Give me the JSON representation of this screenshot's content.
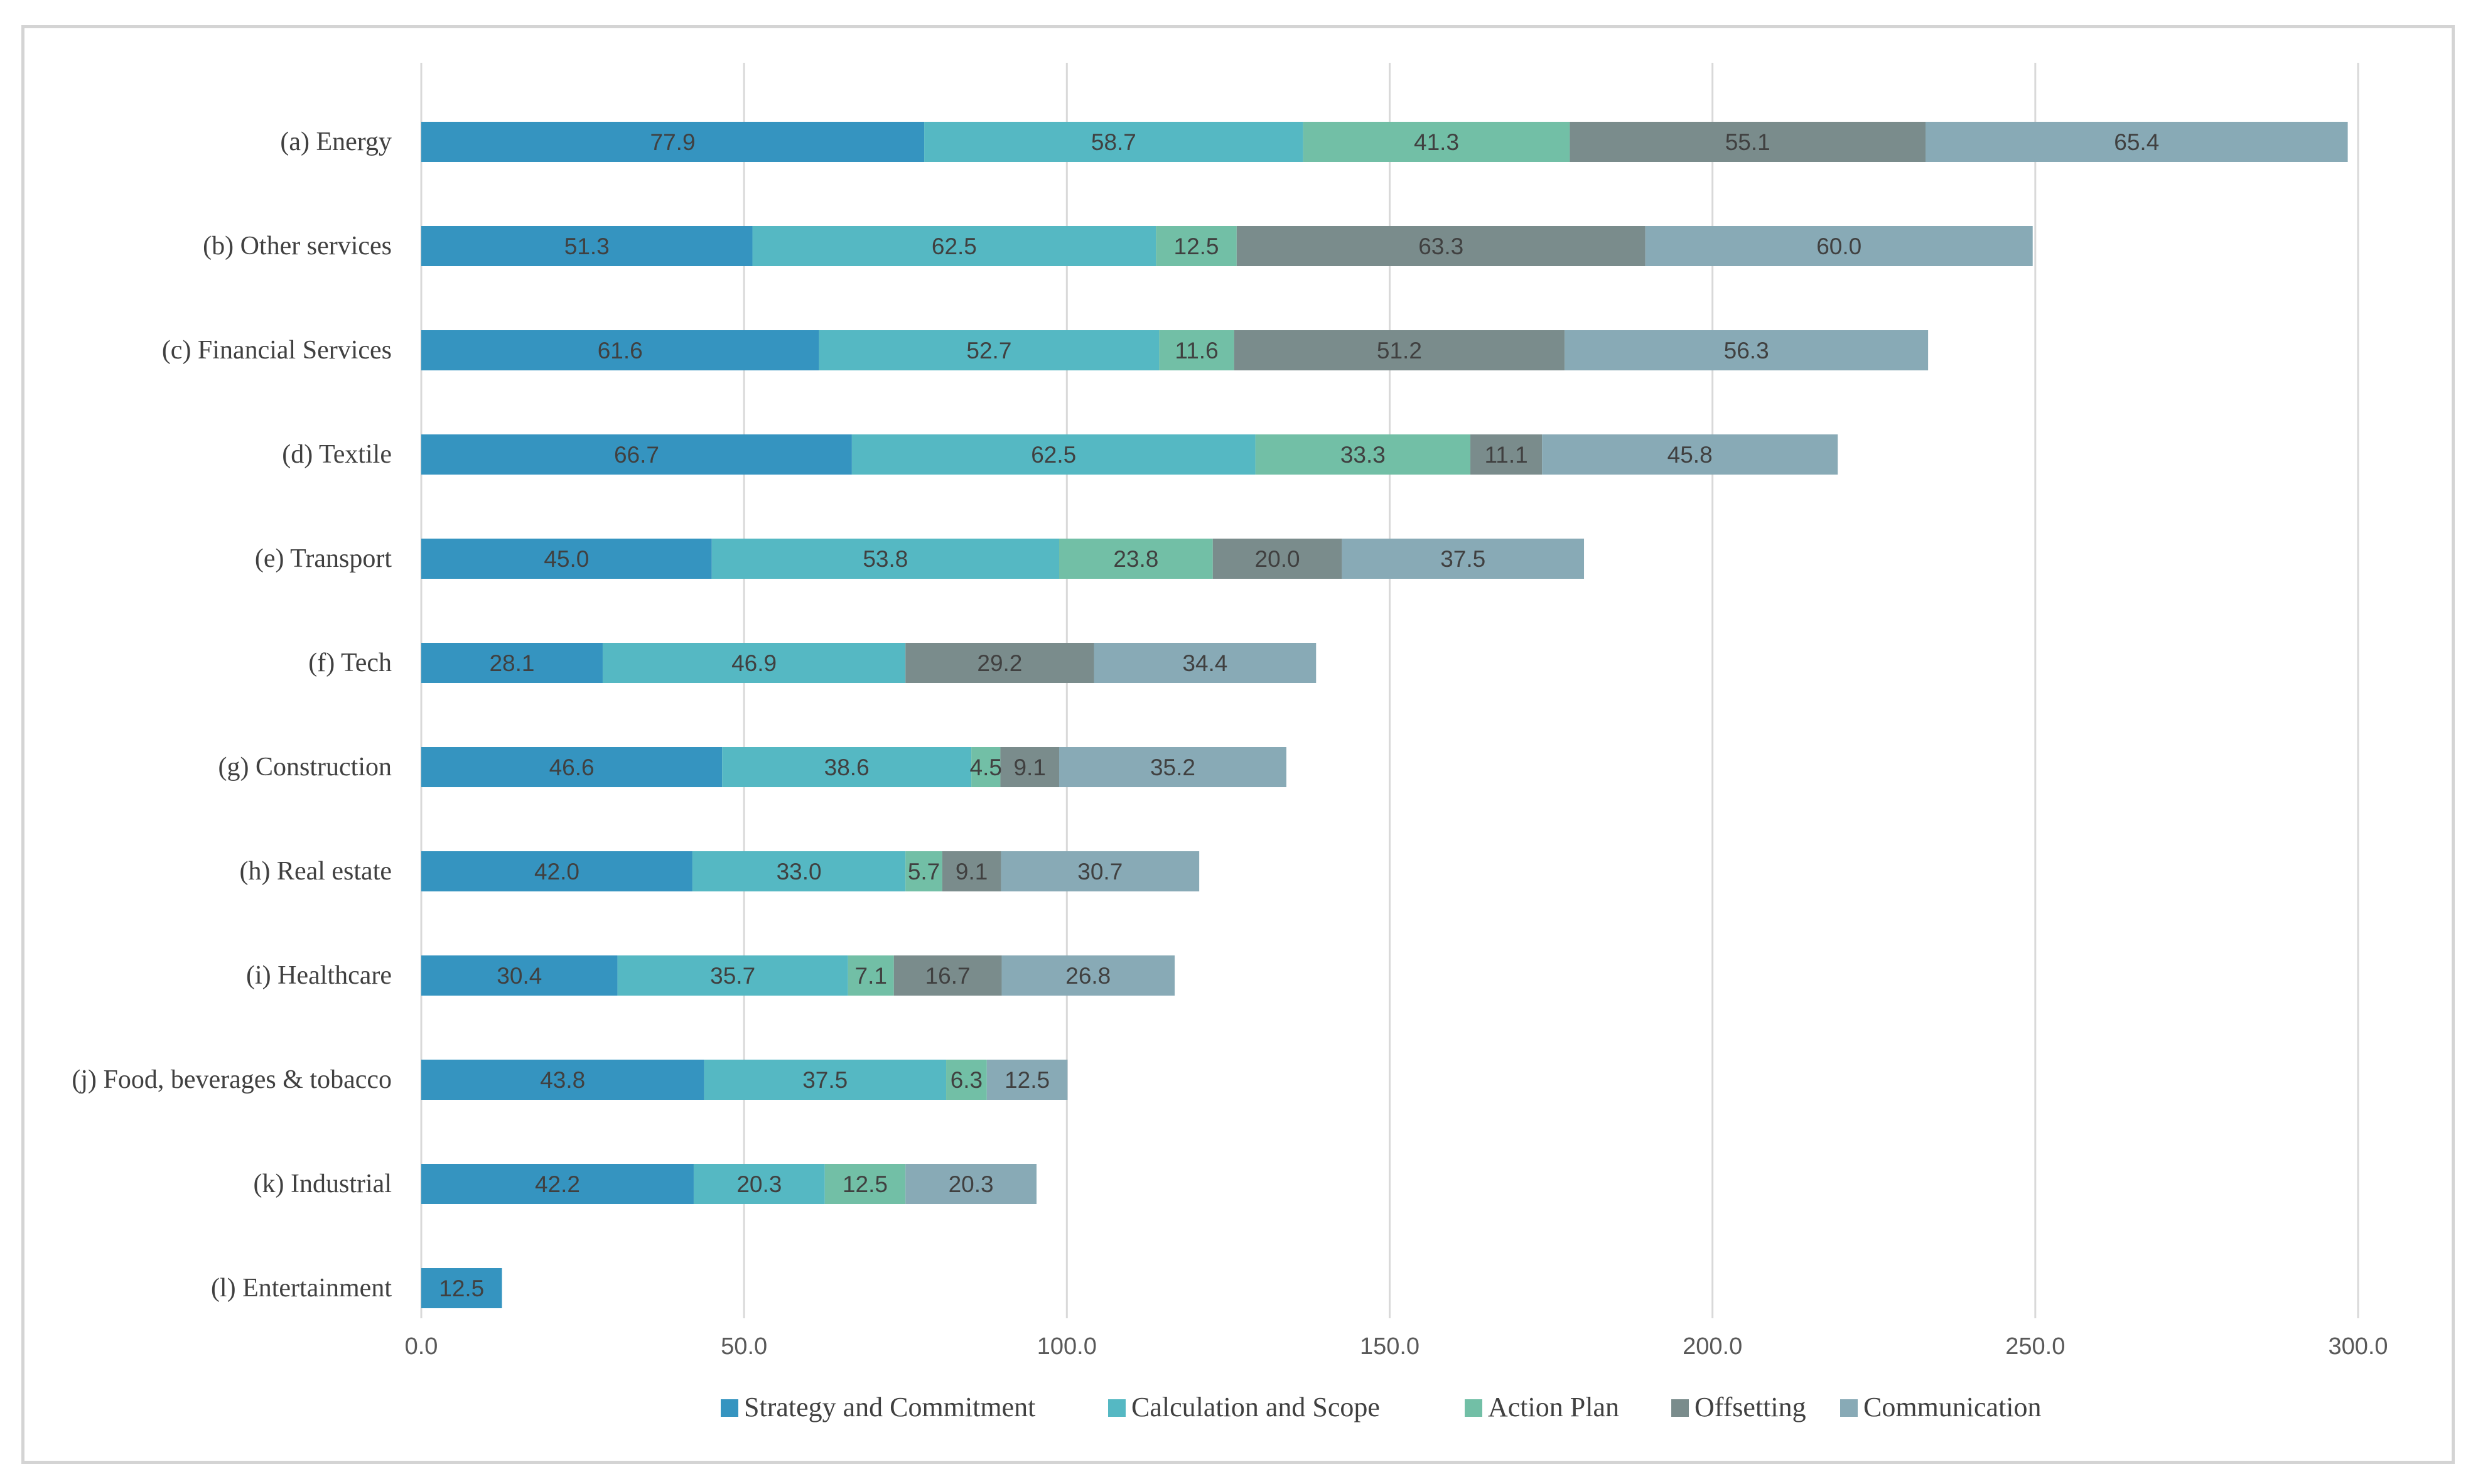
{
  "chart_data": {
    "type": "bar",
    "orientation": "horizontal",
    "stacked": true,
    "categories": [
      "(a) Energy",
      "(b) Other services",
      "(c) Financial Services",
      "(d) Textile",
      "(e) Transport",
      "(f) Tech",
      "(g) Construction",
      "(h) Real estate",
      "(i) Healthcare",
      "(j) Food, beverages & tobacco",
      "(k) Industrial",
      "(l) Entertainment"
    ],
    "series": [
      {
        "name": "Strategy and Commitment",
        "color": "#3594c0",
        "values": [
          77.9,
          51.3,
          61.6,
          66.7,
          45.0,
          28.1,
          46.6,
          42.0,
          30.4,
          43.8,
          42.2,
          12.5
        ]
      },
      {
        "name": "Calculation and Scope",
        "color": "#55b8c3",
        "values": [
          58.7,
          62.5,
          52.7,
          62.5,
          53.8,
          46.9,
          38.6,
          33.0,
          35.7,
          37.5,
          20.3,
          null
        ]
      },
      {
        "name": "Action Plan",
        "color": "#72bfa6",
        "values": [
          41.3,
          12.5,
          11.6,
          33.3,
          23.8,
          null,
          4.5,
          5.7,
          7.1,
          6.3,
          12.5,
          null
        ]
      },
      {
        "name": "Offsetting",
        "color": "#7a8c8c",
        "values": [
          55.1,
          63.3,
          51.2,
          11.1,
          20.0,
          29.2,
          9.1,
          9.1,
          16.7,
          null,
          null,
          null
        ]
      },
      {
        "name": "Communication",
        "color": "#88aab6",
        "values": [
          65.4,
          60.0,
          56.3,
          45.8,
          37.5,
          34.4,
          35.2,
          30.7,
          26.8,
          12.5,
          20.3,
          null
        ]
      }
    ],
    "xlim": [
      0,
      300
    ],
    "xticks": [
      "0.0",
      "50.0",
      "100.0",
      "150.0",
      "200.0",
      "250.0",
      "300.0"
    ],
    "xtick_values": [
      0,
      50,
      100,
      150,
      200,
      250,
      300
    ],
    "title": "",
    "xlabel": "",
    "ylabel": "",
    "grid": "vertical",
    "legend_position": "bottom"
  }
}
